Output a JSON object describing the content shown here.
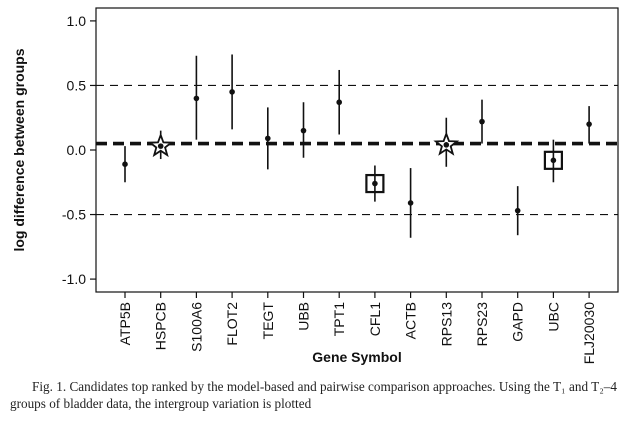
{
  "chart_data": {
    "type": "scatter",
    "title": "",
    "xlabel": "Gene Symbol",
    "ylabel": "log difference between groups",
    "ylim": [
      -1.1,
      1.1
    ],
    "yticks": [
      1.0,
      0.5,
      0.0,
      -0.5,
      -1.0
    ],
    "ytick_labels": [
      "1.0",
      "0.5",
      "0.0",
      "-0.5",
      "-1.0"
    ],
    "reference_lines": [
      {
        "value": 0.5,
        "style": "dashed"
      },
      {
        "value": -0.5,
        "style": "dashed"
      },
      {
        "value": 0.05,
        "style": "thick-dashed"
      }
    ],
    "categories": [
      "ATP5B",
      "HSPCB",
      "S100A6",
      "FLOT2",
      "TEGT",
      "UBB",
      "TPT1",
      "CFL1",
      "ACTB",
      "RPS13",
      "RPS23",
      "GAPD",
      "UBC",
      "FLJ20030"
    ],
    "points": [
      {
        "gene": "ATP5B",
        "value": -0.11,
        "low": -0.25,
        "high": 0.03,
        "marker": "dot"
      },
      {
        "gene": "HSPCB",
        "value": 0.03,
        "low": -0.07,
        "high": 0.15,
        "marker": "star"
      },
      {
        "gene": "S100A6",
        "value": 0.4,
        "low": 0.08,
        "high": 0.73,
        "marker": "dot"
      },
      {
        "gene": "FLOT2",
        "value": 0.45,
        "low": 0.16,
        "high": 0.74,
        "marker": "dot"
      },
      {
        "gene": "TEGT",
        "value": 0.09,
        "low": -0.15,
        "high": 0.33,
        "marker": "dot"
      },
      {
        "gene": "UBB",
        "value": 0.15,
        "low": -0.06,
        "high": 0.37,
        "marker": "dot"
      },
      {
        "gene": "TPT1",
        "value": 0.37,
        "low": 0.12,
        "high": 0.62,
        "marker": "dot"
      },
      {
        "gene": "CFL1",
        "value": -0.26,
        "low": -0.4,
        "high": -0.12,
        "marker": "square"
      },
      {
        "gene": "ACTB",
        "value": -0.41,
        "low": -0.68,
        "high": -0.14,
        "marker": "dot"
      },
      {
        "gene": "RPS13",
        "value": 0.04,
        "low": -0.13,
        "high": 0.25,
        "marker": "star"
      },
      {
        "gene": "RPS23",
        "value": 0.22,
        "low": 0.05,
        "high": 0.39,
        "marker": "dot"
      },
      {
        "gene": "GAPD",
        "value": -0.47,
        "low": -0.66,
        "high": -0.28,
        "marker": "dot"
      },
      {
        "gene": "UBC",
        "value": -0.08,
        "low": -0.25,
        "high": 0.08,
        "marker": "square"
      },
      {
        "gene": "FLJ20030",
        "value": 0.2,
        "low": 0.05,
        "high": 0.34,
        "marker": "dot"
      }
    ]
  },
  "caption": {
    "text": "Fig. 1. Candidates top ranked by the model-based and pairwise comparison approaches. Using the T₁ and T₂–4 groups of bladder data, the intergroup variation is plotted"
  },
  "colors": {
    "ink": "#111111",
    "background": "#ffffff"
  }
}
